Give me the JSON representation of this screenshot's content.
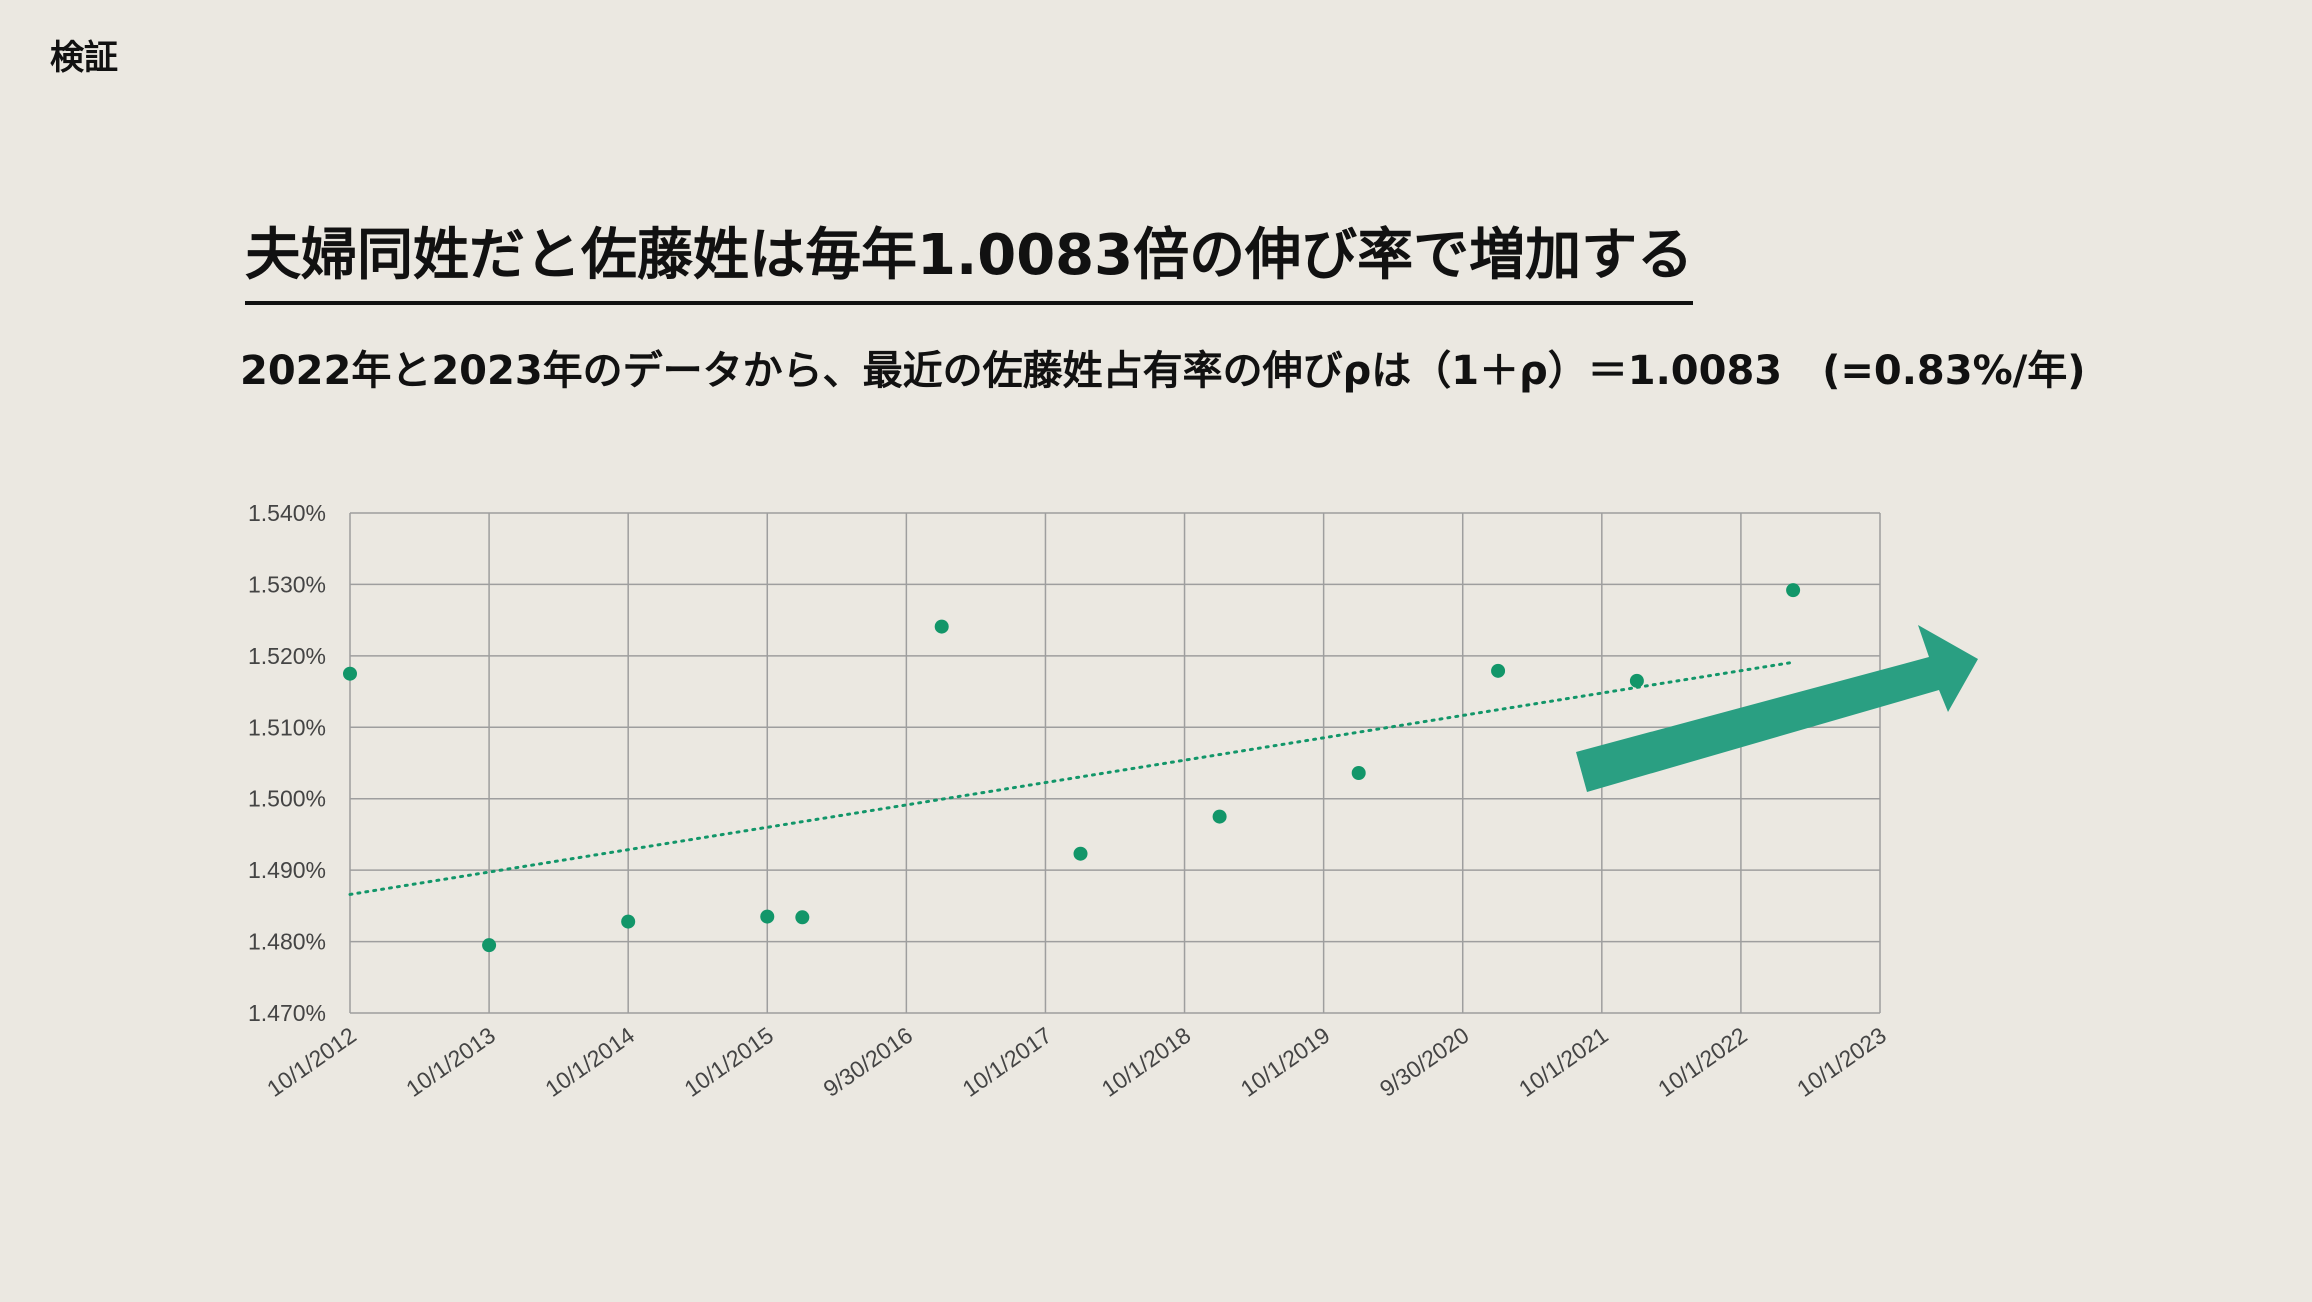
{
  "page": {
    "corner_label": "検証",
    "headline": "夫婦同姓だと佐藤姓は毎年1.0083倍の伸び率で増加する",
    "subhead": "2022年と2023年のデータから、最近の佐藤姓占有率の伸びρは（1＋ρ）＝1.0083　(=0.83%/年)"
  },
  "colors": {
    "background": "#ebe8e1",
    "point": "#129669",
    "trendline": "#129669",
    "arrow": "#2a9f82",
    "grid": "#9e9e9e"
  },
  "chart_data": {
    "type": "scatter",
    "title": "",
    "xlabel": "",
    "ylabel": "",
    "grid": true,
    "ylim": [
      1.47,
      1.54
    ],
    "x_tick_labels": [
      "10/1/2012",
      "10/1/2013",
      "10/1/2014",
      "10/1/2015",
      "9/30/2016",
      "10/1/2017",
      "10/1/2018",
      "10/1/2019",
      "9/30/2020",
      "10/1/2021",
      "10/1/2022",
      "10/1/2023"
    ],
    "y_tick_labels": [
      "1.470%",
      "1.480%",
      "1.490%",
      "1.500%",
      "1.510%",
      "1.520%",
      "1.530%",
      "1.540%"
    ],
    "y_ticks": [
      1.47,
      1.48,
      1.49,
      1.5,
      1.51,
      1.52,
      1.53,
      1.54
    ],
    "series": [
      {
        "points": [
          {
            "x": "2012-10-01",
            "y": 1.5175
          },
          {
            "x": "2013-10-01",
            "y": 1.4795
          },
          {
            "x": "2014-10-01",
            "y": 1.4828
          },
          {
            "x": "2015-10-01",
            "y": 1.4835
          },
          {
            "x": "2016-01-01",
            "y": 1.4834
          },
          {
            "x": "2017-01-01",
            "y": 1.5241
          },
          {
            "x": "2018-01-01",
            "y": 1.4923
          },
          {
            "x": "2019-01-01",
            "y": 1.4975
          },
          {
            "x": "2020-01-01",
            "y": 1.5036
          },
          {
            "x": "2021-01-01",
            "y": 1.5179
          },
          {
            "x": "2022-01-01",
            "y": 1.5165
          },
          {
            "x": "2023-02-15",
            "y": 1.5292
          }
        ]
      }
    ],
    "trendline": {
      "style": "dotted",
      "start": {
        "x": "2012-10-01",
        "y": 1.4866
      },
      "end": {
        "x": "2023-02-15",
        "y": 1.5191
      }
    }
  }
}
